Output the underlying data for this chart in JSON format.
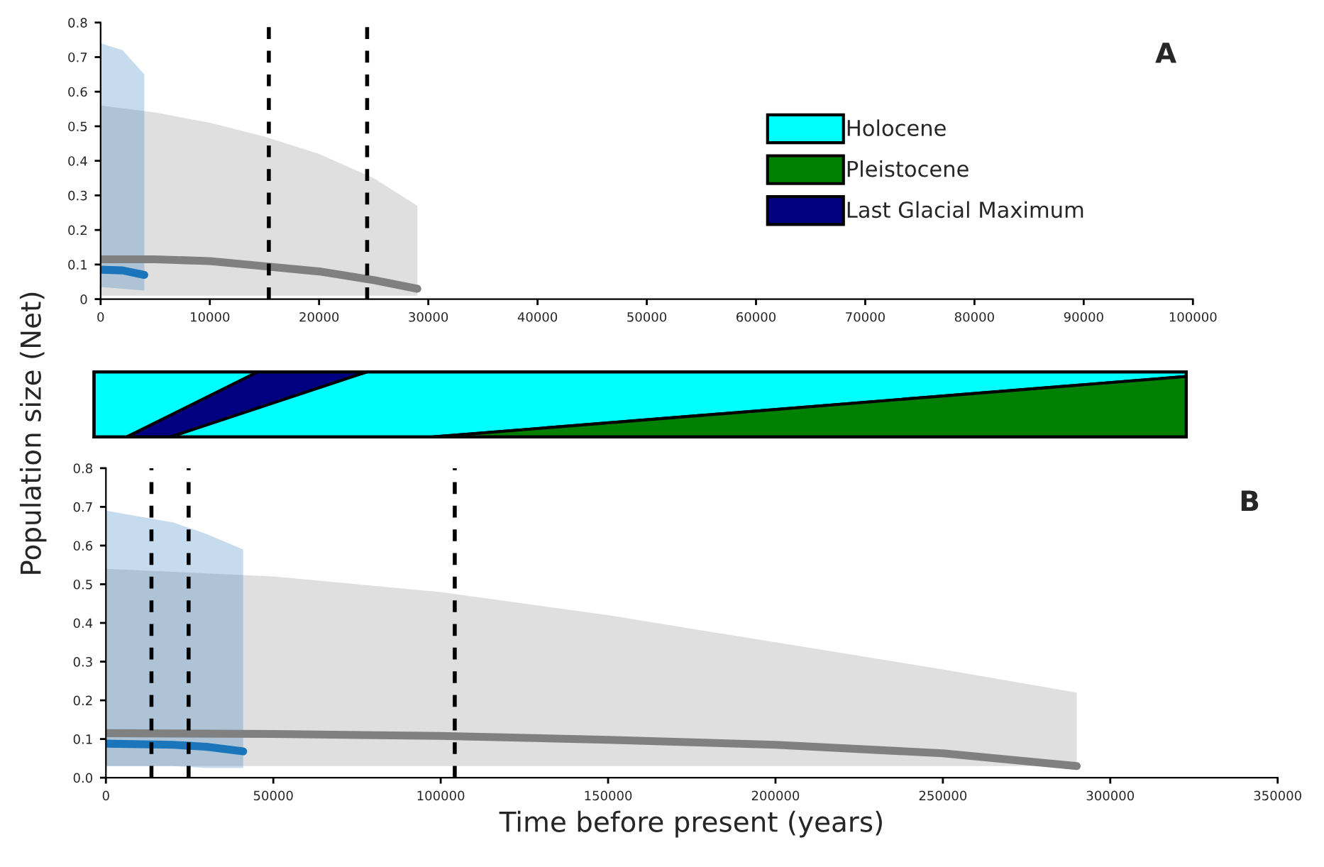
{
  "chart_data": [
    {
      "type": "line",
      "annotations": [
        "A"
      ],
      "xlim": [
        0,
        100000
      ],
      "xticks": [
        0,
        10000,
        20000,
        30000,
        40000,
        50000,
        60000,
        70000,
        80000,
        90000,
        100000
      ],
      "ylim": [
        0,
        0.8
      ],
      "yticks": [
        0,
        0.1,
        0.2,
        0.3,
        0.4,
        0.5,
        0.6,
        0.7,
        0.8
      ],
      "series": [
        {
          "color": "#808080",
          "x": [
            0,
            5000,
            10000,
            15000,
            20000,
            25000,
            29000
          ],
          "values": [
            0.115,
            0.115,
            0.11,
            0.095,
            0.08,
            0.055,
            0.03
          ],
          "lower": [
            0.01,
            0.01,
            0.01,
            0.01,
            0.01,
            0.01,
            0.01
          ],
          "upper": [
            0.56,
            0.54,
            0.51,
            0.47,
            0.42,
            0.35,
            0.27
          ]
        },
        {
          "color": "#1a75bb",
          "x": [
            0,
            2000,
            4000
          ],
          "values": [
            0.085,
            0.083,
            0.07
          ],
          "lower": [
            0.035,
            0.03,
            0.025
          ],
          "upper": [
            0.74,
            0.72,
            0.65
          ]
        }
      ],
      "ref_lines": [
        {
          "axis": "x",
          "value": 15400,
          "line_style": "dashed"
        },
        {
          "axis": "x",
          "value": 24400,
          "line_style": "dashed"
        }
      ],
      "grid": false,
      "line_style": "solid",
      "marker": "none"
    },
    {
      "type": "other",
      "categories": [
        "Holocene",
        "Pleistocene",
        "Last Glacial Maximum"
      ],
      "colors": [
        "#00ffff",
        "#008000",
        "#000080"
      ]
    },
    {
      "type": "line",
      "annotations": [
        "B"
      ],
      "xlabel": "Time before present (years)",
      "ylabel": "Population size (Net)",
      "xlim": [
        0,
        350000
      ],
      "xticks": [
        0,
        50000,
        100000,
        150000,
        200000,
        250000,
        300000,
        350000
      ],
      "ylim": [
        0,
        0.8
      ],
      "yticks": [
        {
          "value": 0,
          "label": "0.0"
        },
        0.1,
        0.2,
        0.3,
        0.4,
        0.5,
        0.6,
        0.7,
        0.8
      ],
      "series": [
        {
          "color": "#808080",
          "x": [
            0,
            50000,
            100000,
            150000,
            200000,
            250000,
            290000
          ],
          "values": [
            0.115,
            0.113,
            0.108,
            0.098,
            0.085,
            0.063,
            0.03
          ],
          "lower": [
            0.03,
            0.03,
            0.03,
            0.03,
            0.03,
            0.03,
            0.03
          ],
          "upper": [
            0.54,
            0.52,
            0.48,
            0.42,
            0.35,
            0.28,
            0.22
          ]
        },
        {
          "color": "#1a75bb",
          "x": [
            0,
            20000,
            30000,
            41000
          ],
          "values": [
            0.088,
            0.085,
            0.08,
            0.068
          ],
          "lower": [
            0.03,
            0.03,
            0.025,
            0.025
          ],
          "upper": [
            0.69,
            0.66,
            0.63,
            0.59
          ]
        }
      ],
      "ref_lines": [
        {
          "axis": "x",
          "value": 13600,
          "line_style": "dashed"
        },
        {
          "axis": "x",
          "value": 24700,
          "line_style": "dashed"
        },
        {
          "axis": "x",
          "value": 104200,
          "line_style": "dashed"
        }
      ],
      "grid": false,
      "line_style": "solid",
      "marker": "none"
    }
  ]
}
